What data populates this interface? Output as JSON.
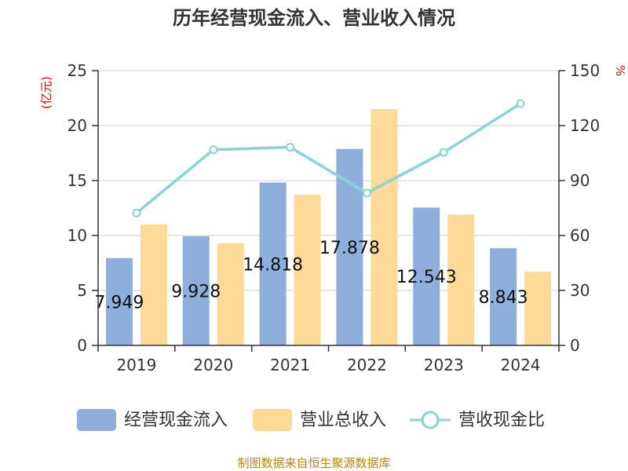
{
  "chart_data": {
    "type": "bar",
    "title": "历年经营现金流入、营业收入情况",
    "categories": [
      "2019",
      "2020",
      "2021",
      "2022",
      "2023",
      "2024"
    ],
    "series": [
      {
        "name": "经营现金流入",
        "axis": "left",
        "type": "bar",
        "color": "#8eaedc",
        "values": [
          7.949,
          9.928,
          14.818,
          17.878,
          12.543,
          8.843
        ]
      },
      {
        "name": "营业总收入",
        "axis": "left",
        "type": "bar",
        "color": "#ffd998",
        "values": [
          11.0,
          9.3,
          13.7,
          21.5,
          11.9,
          6.7
        ]
      },
      {
        "name": "营收现金比",
        "axis": "right",
        "type": "line",
        "color": "#88d4d6",
        "values": [
          72.3,
          106.8,
          108.2,
          83.2,
          105.4,
          132.0
        ]
      }
    ],
    "left_axis": {
      "unit": "(亿元)",
      "ylim": [
        0,
        25
      ],
      "ticks": [
        0,
        5,
        10,
        15,
        20,
        25
      ]
    },
    "right_axis": {
      "unit": "%",
      "ylim": [
        0,
        150
      ],
      "ticks": [
        0,
        30,
        60,
        90,
        120,
        150
      ]
    },
    "data_labels": [
      "7.949",
      "9.928",
      "14.818",
      "17.878",
      "12.543",
      "8.843"
    ],
    "legend": {
      "position": "bottom",
      "items": [
        "经营现金流入",
        "营业总收入",
        "营收现金比"
      ]
    },
    "grid": true
  },
  "source": "制图数据来自恒生聚源数据库"
}
